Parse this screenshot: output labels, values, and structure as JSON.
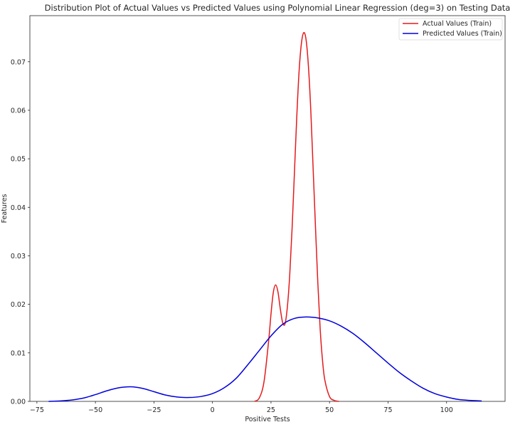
{
  "chart_data": {
    "type": "line",
    "title": "Distribution Plot of Actual Values vs Predicted Values using Polynomial Linear Regression (deg=3) on Testing Data",
    "xlabel": "Positive Tests",
    "ylabel": "Features",
    "xlim": [
      -78,
      125
    ],
    "ylim": [
      0,
      0.0795
    ],
    "xticks": [
      -75,
      -50,
      -25,
      0,
      25,
      50,
      75,
      100
    ],
    "xtick_labels": [
      "−75",
      "−50",
      "−25",
      "0",
      "25",
      "50",
      "75",
      "100"
    ],
    "yticks": [
      0.0,
      0.01,
      0.02,
      0.03,
      0.04,
      0.05,
      0.06,
      0.07
    ],
    "ytick_labels": [
      "0.00",
      "0.01",
      "0.02",
      "0.03",
      "0.04",
      "0.05",
      "0.06",
      "0.07"
    ],
    "grid": false,
    "legend_position": "top-right",
    "series": [
      {
        "name": "Actual Values (Train)",
        "color": "#e41a1c",
        "x": [
          18,
          20,
          22,
          24,
          25,
          26,
          27,
          28,
          29,
          30,
          31,
          32,
          33,
          34,
          35,
          36,
          37,
          38,
          39,
          40,
          41,
          42,
          43,
          44,
          45,
          46,
          47,
          48,
          50,
          52,
          54
        ],
        "y": [
          0.0,
          0.0007,
          0.004,
          0.0125,
          0.018,
          0.0225,
          0.024,
          0.0225,
          0.019,
          0.0162,
          0.016,
          0.0195,
          0.026,
          0.0355,
          0.047,
          0.0585,
          0.068,
          0.0738,
          0.076,
          0.0745,
          0.069,
          0.06,
          0.048,
          0.036,
          0.0245,
          0.015,
          0.0085,
          0.0044,
          0.001,
          0.0002,
          0.0
        ]
      },
      {
        "name": "Predicted Values (Train)",
        "color": "#0000dd",
        "x": [
          -70,
          -65,
          -60,
          -55,
          -50,
          -45,
          -40,
          -35,
          -30,
          -25,
          -20,
          -15,
          -10,
          -5,
          0,
          5,
          10,
          15,
          20,
          25,
          30,
          35,
          40,
          45,
          50,
          55,
          60,
          65,
          70,
          75,
          80,
          85,
          90,
          95,
          100,
          105,
          110,
          115
        ],
        "y": [
          0.0,
          0.0001,
          0.0003,
          0.0007,
          0.0014,
          0.0022,
          0.0028,
          0.003,
          0.0027,
          0.002,
          0.0013,
          0.0009,
          0.0008,
          0.001,
          0.0016,
          0.0028,
          0.0047,
          0.0075,
          0.0105,
          0.0135,
          0.0159,
          0.0171,
          0.0174,
          0.0172,
          0.0166,
          0.0155,
          0.014,
          0.0121,
          0.01,
          0.0079,
          0.0059,
          0.0042,
          0.0027,
          0.0016,
          0.0009,
          0.0004,
          0.0002,
          0.0001
        ]
      }
    ]
  }
}
